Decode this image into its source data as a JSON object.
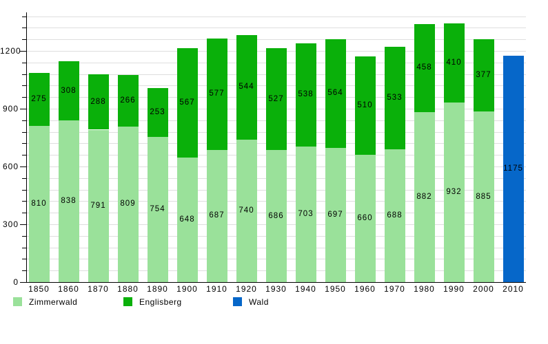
{
  "chart_data": {
    "type": "bar",
    "stacked": true,
    "title": "",
    "xlabel": "",
    "ylabel": "",
    "categories": [
      "1850",
      "1860",
      "1870",
      "1880",
      "1890",
      "1900",
      "1910",
      "1920",
      "1930",
      "1940",
      "1950",
      "1960",
      "1970",
      "1980",
      "1990",
      "2000",
      "2010"
    ],
    "series": [
      {
        "name": "Zimmerwald",
        "color": "#9ae19a",
        "values": [
          810,
          838,
          791,
          809,
          754,
          648,
          687,
          740,
          686,
          703,
          697,
          660,
          688,
          882,
          932,
          885,
          null
        ]
      },
      {
        "name": "Englisberg",
        "color": "#0ab00a",
        "values": [
          275,
          308,
          288,
          266,
          253,
          567,
          577,
          544,
          527,
          538,
          564,
          510,
          533,
          458,
          410,
          377,
          null
        ]
      },
      {
        "name": "Wald",
        "color": "#0667c9",
        "values": [
          null,
          null,
          null,
          null,
          null,
          null,
          null,
          null,
          null,
          null,
          null,
          null,
          null,
          null,
          null,
          null,
          1175
        ]
      }
    ],
    "totals": [
      1085,
      1146,
      1079,
      1075,
      1007,
      1215,
      1264,
      1284,
      1213,
      1241,
      1261,
      1170,
      1221,
      1340,
      1342,
      1262,
      1175
    ],
    "y_major_ticks": [
      0,
      300,
      600,
      900,
      1200
    ],
    "y_minor_step": 60,
    "ylim": [
      0,
      1380
    ],
    "grid": true,
    "bar_value_labels": "centered-in-segment",
    "legend_position": "bottom"
  },
  "colors": {
    "background": "#ffffff",
    "axis": "#000000",
    "grid_line": "#dedede",
    "text": "#000000",
    "zimmerwald": "#9ae19a",
    "englisberg": "#0ab00a",
    "wald": "#0667c9"
  }
}
